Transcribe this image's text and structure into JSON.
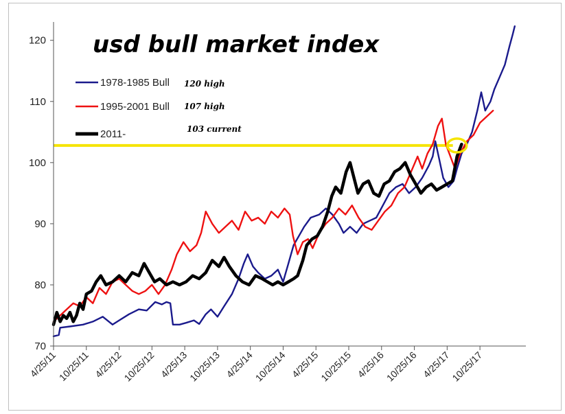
{
  "chart_data": {
    "type": "line",
    "title": "usd bull market index",
    "xlabel": "",
    "ylabel": "",
    "ylim": [
      70,
      123
    ],
    "yticks": [
      70,
      80,
      90,
      100,
      110,
      120
    ],
    "xlim": [
      0,
      7.2
    ],
    "x_tick_labels": [
      "4/25/11",
      "10/25/11",
      "4/25/12",
      "10/25/12",
      "4/25/13",
      "10/25/13",
      "4/25/14",
      "10/25/14",
      "4/25/15",
      "10/25/15",
      "4/25/16",
      "10/25/16",
      "4/25/17",
      "10/25/17"
    ],
    "x_unit": "years since 4/25/11",
    "reference_line": {
      "value": 102.8,
      "color": "#f5e400"
    },
    "highlight": {
      "x": 6.15,
      "y": 102.8,
      "color": "#f5e400"
    },
    "series": [
      {
        "name": "1978-1985 Bull",
        "color": "#1a1a8c",
        "annotation": "120 high",
        "points": [
          [
            0.0,
            71.6
          ],
          [
            0.08,
            71.8
          ],
          [
            0.1,
            73.0
          ],
          [
            0.25,
            73.2
          ],
          [
            0.45,
            73.5
          ],
          [
            0.6,
            74.0
          ],
          [
            0.75,
            74.8
          ],
          [
            0.9,
            73.5
          ],
          [
            1.0,
            74.2
          ],
          [
            1.15,
            75.2
          ],
          [
            1.3,
            76.0
          ],
          [
            1.42,
            75.8
          ],
          [
            1.55,
            77.2
          ],
          [
            1.65,
            76.8
          ],
          [
            1.72,
            77.2
          ],
          [
            1.78,
            77.0
          ],
          [
            1.82,
            73.5
          ],
          [
            1.92,
            73.5
          ],
          [
            2.02,
            73.8
          ],
          [
            2.14,
            74.2
          ],
          [
            2.22,
            73.6
          ],
          [
            2.32,
            75.2
          ],
          [
            2.4,
            76.0
          ],
          [
            2.5,
            74.8
          ],
          [
            2.6,
            76.5
          ],
          [
            2.72,
            78.5
          ],
          [
            2.82,
            81.0
          ],
          [
            2.9,
            83.5
          ],
          [
            2.96,
            85.0
          ],
          [
            3.04,
            83.0
          ],
          [
            3.12,
            82.0
          ],
          [
            3.22,
            81.0
          ],
          [
            3.32,
            81.5
          ],
          [
            3.42,
            82.5
          ],
          [
            3.5,
            80.5
          ],
          [
            3.58,
            83.5
          ],
          [
            3.66,
            86.5
          ],
          [
            3.74,
            88.0
          ],
          [
            3.82,
            89.5
          ],
          [
            3.92,
            91.0
          ],
          [
            4.05,
            91.5
          ],
          [
            4.15,
            92.5
          ],
          [
            4.25,
            91.5
          ],
          [
            4.35,
            90.0
          ],
          [
            4.42,
            88.5
          ],
          [
            4.52,
            89.5
          ],
          [
            4.62,
            88.5
          ],
          [
            4.72,
            90.0
          ],
          [
            4.82,
            90.5
          ],
          [
            4.92,
            91.0
          ],
          [
            5.02,
            93.0
          ],
          [
            5.12,
            95.0
          ],
          [
            5.22,
            96.0
          ],
          [
            5.32,
            96.5
          ],
          [
            5.42,
            95.0
          ],
          [
            5.52,
            96.0
          ],
          [
            5.62,
            97.5
          ],
          [
            5.72,
            99.5
          ],
          [
            5.78,
            101.0
          ],
          [
            5.82,
            103.5
          ],
          [
            5.88,
            100.5
          ],
          [
            5.94,
            97.5
          ],
          [
            6.02,
            96.0
          ],
          [
            6.1,
            97.0
          ],
          [
            6.15,
            99.0
          ],
          [
            6.22,
            101.5
          ],
          [
            6.3,
            103.0
          ],
          [
            6.38,
            105.0
          ],
          [
            6.46,
            108.5
          ],
          [
            6.52,
            111.5
          ],
          [
            6.58,
            108.5
          ],
          [
            6.66,
            110.0
          ],
          [
            6.72,
            112.0
          ],
          [
            6.8,
            114.0
          ],
          [
            6.88,
            116.0
          ],
          [
            6.95,
            119.0
          ],
          [
            7.0,
            121.0
          ],
          [
            7.03,
            122.3
          ]
        ]
      },
      {
        "name": "1995-2001 Bull",
        "color": "#ee1111",
        "annotation": "107 high",
        "points": [
          [
            0.0,
            74.0
          ],
          [
            0.1,
            75.0
          ],
          [
            0.2,
            76.0
          ],
          [
            0.3,
            77.0
          ],
          [
            0.4,
            76.5
          ],
          [
            0.5,
            78.0
          ],
          [
            0.6,
            77.0
          ],
          [
            0.7,
            79.5
          ],
          [
            0.8,
            78.5
          ],
          [
            0.9,
            80.5
          ],
          [
            1.0,
            81.0
          ],
          [
            1.1,
            80.0
          ],
          [
            1.2,
            79.0
          ],
          [
            1.3,
            78.5
          ],
          [
            1.4,
            79.0
          ],
          [
            1.5,
            80.0
          ],
          [
            1.6,
            78.5
          ],
          [
            1.7,
            80.0
          ],
          [
            1.8,
            82.5
          ],
          [
            1.88,
            85.0
          ],
          [
            1.98,
            87.0
          ],
          [
            2.08,
            85.5
          ],
          [
            2.18,
            86.5
          ],
          [
            2.25,
            88.5
          ],
          [
            2.32,
            92.0
          ],
          [
            2.42,
            90.0
          ],
          [
            2.52,
            88.5
          ],
          [
            2.62,
            89.5
          ],
          [
            2.72,
            90.5
          ],
          [
            2.82,
            89.0
          ],
          [
            2.92,
            92.0
          ],
          [
            3.02,
            90.5
          ],
          [
            3.12,
            91.0
          ],
          [
            3.22,
            90.0
          ],
          [
            3.32,
            92.0
          ],
          [
            3.42,
            91.0
          ],
          [
            3.52,
            92.5
          ],
          [
            3.6,
            91.5
          ],
          [
            3.65,
            88.0
          ],
          [
            3.72,
            85.0
          ],
          [
            3.8,
            87.0
          ],
          [
            3.88,
            87.5
          ],
          [
            3.95,
            86.0
          ],
          [
            4.05,
            88.5
          ],
          [
            4.15,
            90.0
          ],
          [
            4.25,
            91.0
          ],
          [
            4.35,
            92.5
          ],
          [
            4.45,
            91.5
          ],
          [
            4.55,
            93.0
          ],
          [
            4.65,
            91.0
          ],
          [
            4.75,
            89.5
          ],
          [
            4.85,
            89.0
          ],
          [
            4.95,
            90.5
          ],
          [
            5.05,
            92.0
          ],
          [
            5.15,
            93.0
          ],
          [
            5.25,
            95.0
          ],
          [
            5.35,
            96.0
          ],
          [
            5.45,
            98.5
          ],
          [
            5.55,
            101.0
          ],
          [
            5.62,
            99.0
          ],
          [
            5.7,
            101.5
          ],
          [
            5.78,
            103.0
          ],
          [
            5.86,
            106.0
          ],
          [
            5.92,
            107.2
          ],
          [
            5.98,
            103.0
          ],
          [
            6.05,
            101.0
          ],
          [
            6.12,
            99.0
          ],
          [
            6.2,
            101.5
          ],
          [
            6.3,
            103.5
          ],
          [
            6.4,
            104.5
          ],
          [
            6.5,
            106.5
          ],
          [
            6.6,
            107.5
          ],
          [
            6.7,
            108.5
          ]
        ]
      },
      {
        "name": "2011-",
        "color": "#000000",
        "annotation": "103 current",
        "points": [
          [
            0.0,
            73.5
          ],
          [
            0.05,
            75.5
          ],
          [
            0.1,
            74.0
          ],
          [
            0.15,
            75.0
          ],
          [
            0.2,
            74.5
          ],
          [
            0.25,
            75.5
          ],
          [
            0.3,
            74.0
          ],
          [
            0.35,
            75.0
          ],
          [
            0.4,
            77.0
          ],
          [
            0.45,
            76.0
          ],
          [
            0.5,
            78.5
          ],
          [
            0.58,
            79.0
          ],
          [
            0.65,
            80.5
          ],
          [
            0.72,
            81.5
          ],
          [
            0.8,
            80.0
          ],
          [
            0.9,
            80.5
          ],
          [
            1.0,
            81.5
          ],
          [
            1.1,
            80.5
          ],
          [
            1.2,
            82.0
          ],
          [
            1.3,
            81.5
          ],
          [
            1.38,
            83.5
          ],
          [
            1.46,
            82.0
          ],
          [
            1.54,
            80.5
          ],
          [
            1.62,
            81.0
          ],
          [
            1.72,
            80.0
          ],
          [
            1.82,
            80.5
          ],
          [
            1.92,
            80.0
          ],
          [
            2.02,
            80.5
          ],
          [
            2.12,
            81.5
          ],
          [
            2.22,
            81.0
          ],
          [
            2.32,
            82.0
          ],
          [
            2.42,
            84.0
          ],
          [
            2.52,
            83.0
          ],
          [
            2.6,
            84.5
          ],
          [
            2.68,
            83.0
          ],
          [
            2.78,
            81.5
          ],
          [
            2.88,
            80.5
          ],
          [
            2.98,
            80.0
          ],
          [
            3.08,
            81.5
          ],
          [
            3.18,
            81.0
          ],
          [
            3.26,
            80.5
          ],
          [
            3.34,
            80.0
          ],
          [
            3.42,
            80.5
          ],
          [
            3.5,
            80.0
          ],
          [
            3.58,
            80.5
          ],
          [
            3.66,
            81.0
          ],
          [
            3.72,
            81.5
          ],
          [
            3.8,
            84.0
          ],
          [
            3.86,
            86.5
          ],
          [
            3.94,
            87.5
          ],
          [
            4.02,
            88.0
          ],
          [
            4.1,
            89.5
          ],
          [
            4.18,
            92.0
          ],
          [
            4.24,
            94.5
          ],
          [
            4.3,
            96.0
          ],
          [
            4.38,
            95.0
          ],
          [
            4.46,
            98.5
          ],
          [
            4.52,
            100.0
          ],
          [
            4.58,
            97.5
          ],
          [
            4.64,
            95.0
          ],
          [
            4.72,
            96.5
          ],
          [
            4.8,
            97.0
          ],
          [
            4.88,
            95.0
          ],
          [
            4.96,
            94.5
          ],
          [
            5.04,
            96.5
          ],
          [
            5.12,
            97.0
          ],
          [
            5.2,
            98.5
          ],
          [
            5.28,
            99.0
          ],
          [
            5.36,
            100.0
          ],
          [
            5.44,
            98.0
          ],
          [
            5.52,
            96.5
          ],
          [
            5.6,
            95.0
          ],
          [
            5.68,
            96.0
          ],
          [
            5.76,
            96.5
          ],
          [
            5.84,
            95.5
          ],
          [
            5.92,
            96.0
          ],
          [
            6.0,
            96.5
          ],
          [
            6.08,
            97.0
          ],
          [
            6.15,
            101.0
          ],
          [
            6.22,
            103.0
          ]
        ]
      }
    ]
  }
}
